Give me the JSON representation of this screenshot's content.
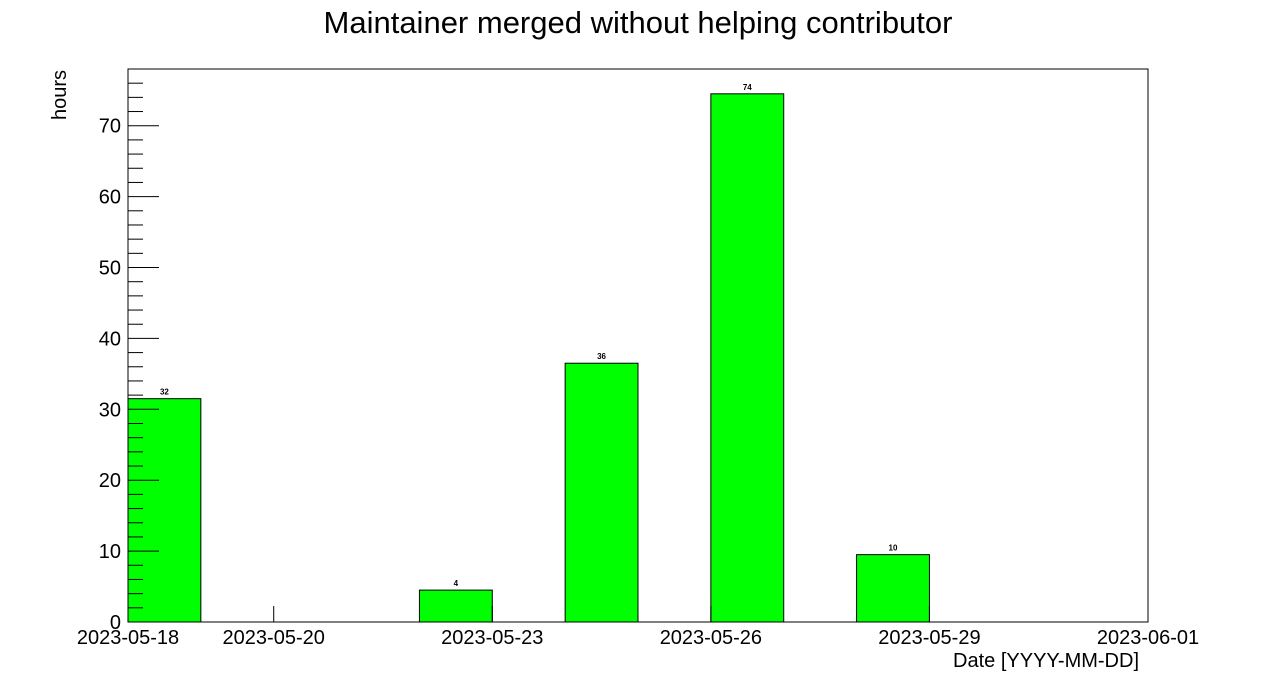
{
  "chart_data": {
    "type": "bar",
    "title": "Maintainer merged without helping contributor",
    "xlabel": "Date [YYYY-MM-DD]",
    "ylabel": "hours",
    "ylim": [
      0,
      78
    ],
    "xlim": [
      "2023-05-18",
      "2023-06-01"
    ],
    "x_ticks": [
      "2023-05-18",
      "2023-05-20",
      "2023-05-23",
      "2023-05-26",
      "2023-05-29",
      "2023-06-01"
    ],
    "y_ticks": [
      0,
      10,
      20,
      30,
      40,
      50,
      60,
      70
    ],
    "bars": [
      {
        "start": "2023-05-18",
        "end": "2023-05-19",
        "value": 31.5,
        "label": "32"
      },
      {
        "start": "2023-05-22",
        "end": "2023-05-23",
        "value": 4.5,
        "label": "4"
      },
      {
        "start": "2023-05-24",
        "end": "2023-05-25",
        "value": 36.5,
        "label": "36"
      },
      {
        "start": "2023-05-26",
        "end": "2023-05-27",
        "value": 74.5,
        "label": "74"
      },
      {
        "start": "2023-05-28",
        "end": "2023-05-29",
        "value": 9.5,
        "label": "10"
      }
    ],
    "bar_color": "#00ff00",
    "grid": false,
    "legend": "none"
  }
}
